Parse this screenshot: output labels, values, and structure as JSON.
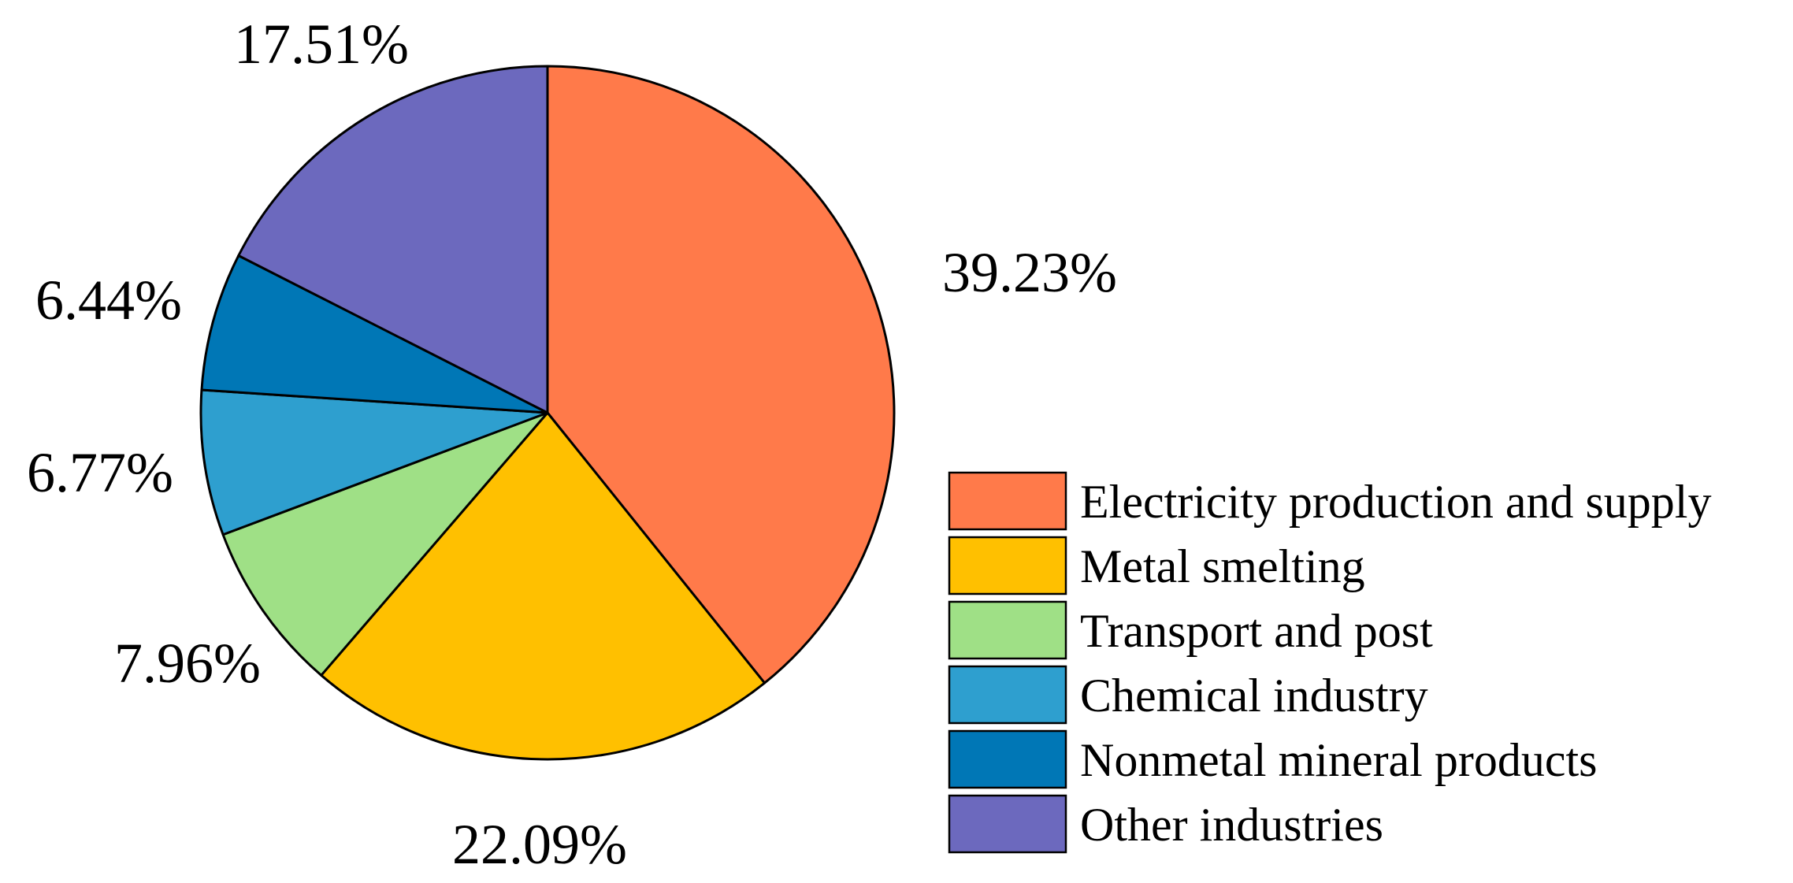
{
  "chart_data": {
    "type": "pie",
    "categories": [
      "Electricity production and supply",
      "Metal smelting",
      "Transport and post",
      "Chemical industry",
      "Nonmetal mineral products",
      "Other industries"
    ],
    "values": [
      39.23,
      22.09,
      7.96,
      6.77,
      6.44,
      17.51
    ],
    "labels": [
      "39.23%",
      "22.09%",
      "7.96%",
      "6.77%",
      "6.44%",
      "17.51%"
    ],
    "colors": [
      "#FF7A4A",
      "#FFC000",
      "#9FE086",
      "#2E9FCF",
      "#0077B6",
      "#6C69BE"
    ],
    "start_angle_deg": 0,
    "direction": "clockwise",
    "legend_position": "right",
    "title": ""
  }
}
